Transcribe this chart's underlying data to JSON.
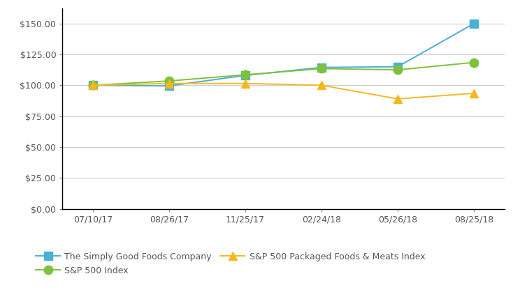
{
  "x_labels": [
    "07/10/17",
    "08/26/17",
    "11/25/17",
    "02/24/18",
    "05/26/18",
    "08/25/18"
  ],
  "series": [
    {
      "name": "The Simply Good Foods Company",
      "values": [
        100.0,
        99.5,
        108.0,
        114.5,
        115.0,
        150.0
      ],
      "color": "#4bafd6",
      "marker": "s",
      "markersize": 8,
      "linewidth": 1.4
    },
    {
      "name": "S&P 500 Index",
      "values": [
        100.0,
        103.5,
        108.5,
        113.5,
        112.5,
        118.5
      ],
      "color": "#7dc23a",
      "marker": "o",
      "markersize": 9,
      "linewidth": 1.4
    },
    {
      "name": "S&P 500 Packaged Foods & Meats Index",
      "values": [
        100.0,
        101.5,
        101.5,
        100.0,
        89.0,
        93.5
      ],
      "color": "#f5b820",
      "marker": "^",
      "markersize": 8,
      "linewidth": 1.4
    }
  ],
  "ylim": [
    0,
    162
  ],
  "yticks": [
    0,
    25,
    50,
    75,
    100,
    125,
    150
  ],
  "background_color": "#ffffff",
  "grid_color": "#cccccc",
  "legend_fontsize": 9,
  "tick_fontsize": 9,
  "tick_color": "#555555"
}
